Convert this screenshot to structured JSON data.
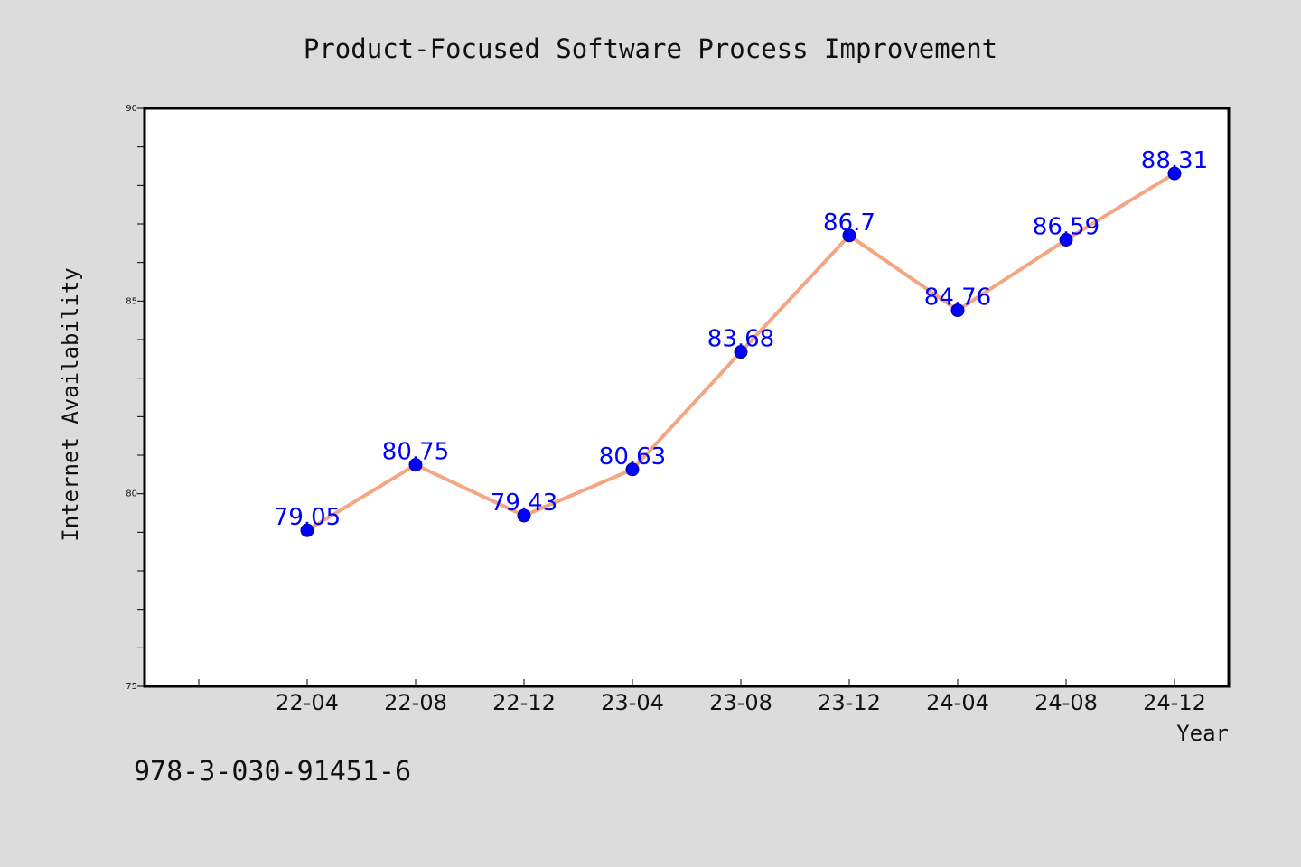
{
  "chart_data": {
    "type": "line",
    "title": "Product-Focused Software Process Improvement",
    "xlabel": "Year",
    "ylabel": "Internet Availability",
    "categories": [
      "22-04",
      "22-08",
      "22-12",
      "23-04",
      "23-08",
      "23-12",
      "24-04",
      "24-08",
      "24-12"
    ],
    "series": [
      {
        "values": [
          79.05,
          80.75,
          79.43,
          80.63,
          83.68,
          86.7,
          84.76,
          86.59,
          88.31
        ],
        "line_color": "#f4a582",
        "marker_color": "#0000ff"
      }
    ],
    "data_labels": [
      "79.05",
      "80.75",
      "79.43",
      "80.63",
      "83.68",
      "86.7",
      "84.76",
      "86.59",
      "88.31"
    ],
    "ylim": [
      75,
      90
    ],
    "y_major_ticks": [
      75,
      80,
      85,
      90
    ],
    "y_tick_labels": [
      "75",
      "80",
      "85",
      "90"
    ],
    "grid": false,
    "legend": "none"
  },
  "footer": {
    "isbn": "978-3-030-91451-6"
  },
  "colors": {
    "background": "#dcdcdc",
    "plot_area": "#ffffff",
    "label_color": "#0000ff"
  }
}
